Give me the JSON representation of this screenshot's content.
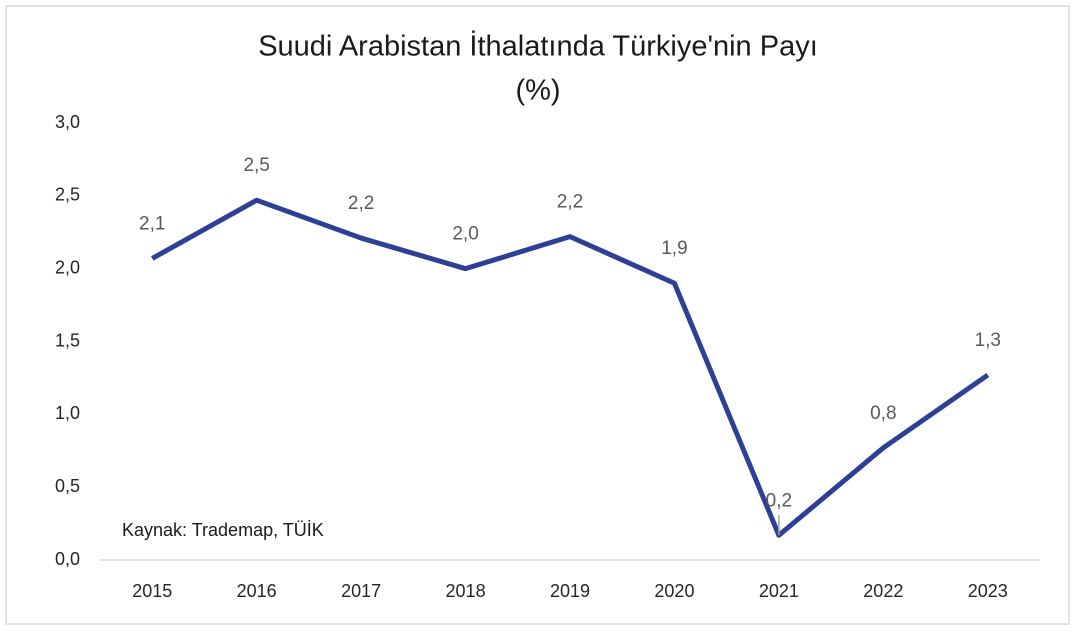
{
  "chart_data": {
    "type": "line",
    "title": "Suudi Arabistan İthalatında Türkiye'nin Payı",
    "subtitle": "(%)",
    "annotation": "Kaynak: Trademap, TÜİK",
    "categories": [
      "2015",
      "2016",
      "2017",
      "2018",
      "2019",
      "2020",
      "2021",
      "2022",
      "2023"
    ],
    "series": [
      {
        "color": "#2e3f96",
        "values": [
          2.07,
          2.47,
          2.21,
          2.0,
          2.22,
          1.9,
          0.17,
          0.77,
          1.27
        ],
        "value_labels": [
          "2,1",
          "2,5",
          "2,2",
          "2,0",
          "2,2",
          "1,9",
          "0,2",
          "0,8",
          "1,3"
        ]
      }
    ],
    "ylim": [
      0,
      3
    ],
    "yticks": [
      {
        "value": 0,
        "label": "0,0"
      },
      {
        "value": 0.5,
        "label": "0,5"
      },
      {
        "value": 1,
        "label": "1,0"
      },
      {
        "value": 1.5,
        "label": "1,5"
      },
      {
        "value": 2,
        "label": "2,0"
      },
      {
        "value": 2.5,
        "label": "2,5"
      },
      {
        "value": 3,
        "label": "3,0"
      }
    ],
    "grid": false
  }
}
